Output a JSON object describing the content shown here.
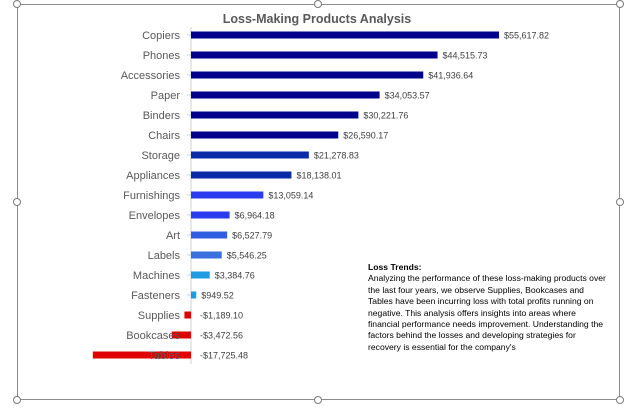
{
  "chart_data": {
    "type": "bar",
    "orientation": "horizontal",
    "title": "Loss-Making Products Analysis",
    "categories": [
      "Copiers",
      "Phones",
      "Accessories",
      "Paper",
      "Binders",
      "Chairs",
      "Storage",
      "Appliances",
      "Furnishings",
      "Envelopes",
      "Art",
      "Labels",
      "Machines",
      "Fasteners",
      "Supplies",
      "Bookcases",
      "Tables"
    ],
    "values": [
      55617.82,
      44515.73,
      41936.64,
      34053.57,
      30221.76,
      26590.17,
      21278.83,
      18138.01,
      13059.14,
      6964.18,
      6527.79,
      5546.25,
      3384.76,
      949.52,
      -1189.1,
      -3472.56,
      -17725.48
    ],
    "data_labels": [
      "$55,617.82",
      "$44,515.73",
      "$41,936.64",
      "$34,053.57",
      "$30,221.76",
      "$26,590.17",
      "$21,278.83",
      "$18,138.01",
      "$13,059.14",
      "$6,964.18",
      "$6,527.79",
      "$5,546.25",
      "$3,384.76",
      "$949.52",
      "-$1,189.10",
      "-$3,472.56",
      "-$17,725.48"
    ],
    "colors": [
      "#00008b",
      "#00008b",
      "#00008b",
      "#00008b",
      "#00008b",
      "#00008b",
      "#0a2aa8",
      "#0a2aa8",
      "#2a3cee",
      "#2a3cee",
      "#2f5fe0",
      "#3a6fe0",
      "#1f9be0",
      "#1f9be0",
      "#e00000",
      "#e00000",
      "#e00000"
    ],
    "xlabel": "",
    "ylabel": "",
    "grid": false,
    "legend": "none",
    "xlim": [
      -17725.48,
      55617.82
    ]
  },
  "note": {
    "title": "Loss Trends:",
    "body": "Analyzing the performance of these loss-making products over the last four years, we observe Supplies, Bookcases and Tables have been incurring loss with total profits running on negative. This analysis offers insights into areas where financial performance needs improvement. Understanding the factors behind the losses and developing strategies for recovery is essential for the company's"
  }
}
